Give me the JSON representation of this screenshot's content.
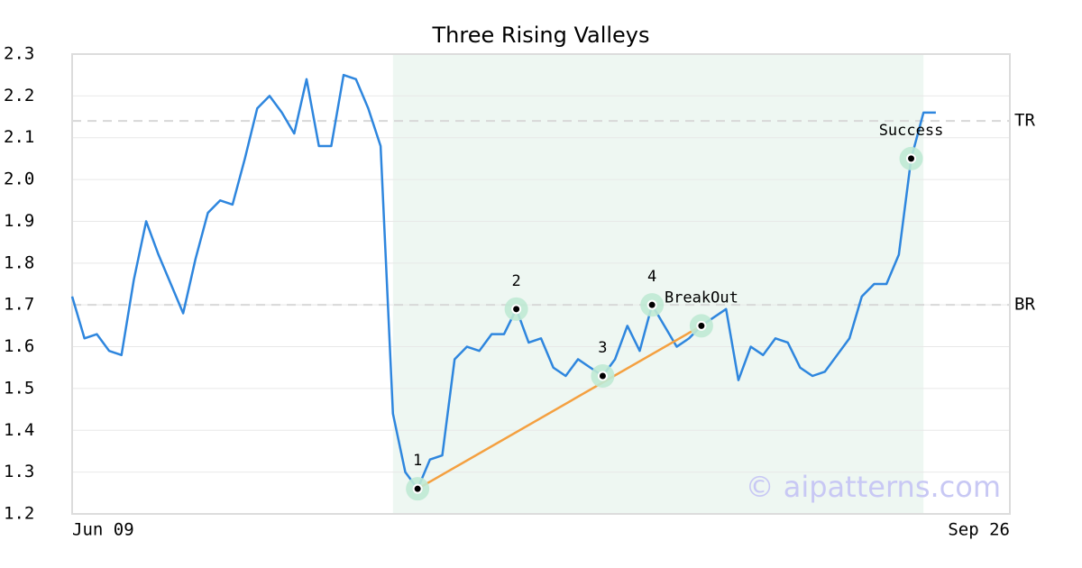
{
  "chart_data": {
    "type": "line",
    "title": "Three Rising Valleys",
    "x_labels": [
      "Jun 09",
      "Sep 26"
    ],
    "values": [
      1.72,
      1.62,
      1.63,
      1.59,
      1.58,
      1.76,
      1.9,
      1.82,
      1.75,
      1.68,
      1.81,
      1.92,
      1.95,
      1.94,
      2.05,
      2.17,
      2.2,
      2.16,
      2.11,
      2.24,
      2.08,
      2.08,
      2.25,
      2.24,
      2.17,
      2.08,
      1.44,
      1.3,
      1.26,
      1.33,
      1.34,
      1.57,
      1.6,
      1.59,
      1.63,
      1.63,
      1.69,
      1.61,
      1.62,
      1.55,
      1.53,
      1.57,
      1.55,
      1.53,
      1.57,
      1.65,
      1.59,
      1.7,
      1.65,
      1.6,
      1.62,
      1.65,
      1.67,
      1.69,
      1.52,
      1.6,
      1.58,
      1.62,
      1.61,
      1.55,
      1.53,
      1.54,
      1.58,
      1.62,
      1.72,
      1.75,
      1.75,
      1.82,
      2.05,
      2.16,
      2.16
    ],
    "color": "#2e86de",
    "xlim": [
      0,
      76
    ],
    "ylim": [
      1.2,
      2.3
    ],
    "yticks": [
      1.2,
      1.3,
      1.4,
      1.5,
      1.6,
      1.7,
      1.8,
      1.9,
      {
        "value": 2,
        "label": "2.0"
      },
      2.1,
      2.2,
      2.3
    ],
    "grid": true,
    "shaded_range": [
      26,
      69
    ],
    "reference_lines": [
      {
        "label": "TR",
        "value": 2.14
      },
      {
        "label": "BR",
        "value": 1.7
      }
    ],
    "annotations": [
      {
        "label": "1",
        "index": 28,
        "value": 1.26
      },
      {
        "label": "2",
        "index": 36,
        "value": 1.69
      },
      {
        "label": "3",
        "index": 43,
        "value": 1.53
      },
      {
        "label": "4",
        "index": 47,
        "value": 1.7
      },
      {
        "label": "BreakOut",
        "index": 51,
        "value": 1.65
      },
      {
        "label": "Success",
        "index": 68,
        "value": 2.05
      }
    ],
    "trendline": {
      "color": "#f4a040",
      "from": 0,
      "to": 4
    },
    "watermark": "© aipatterns.com"
  }
}
